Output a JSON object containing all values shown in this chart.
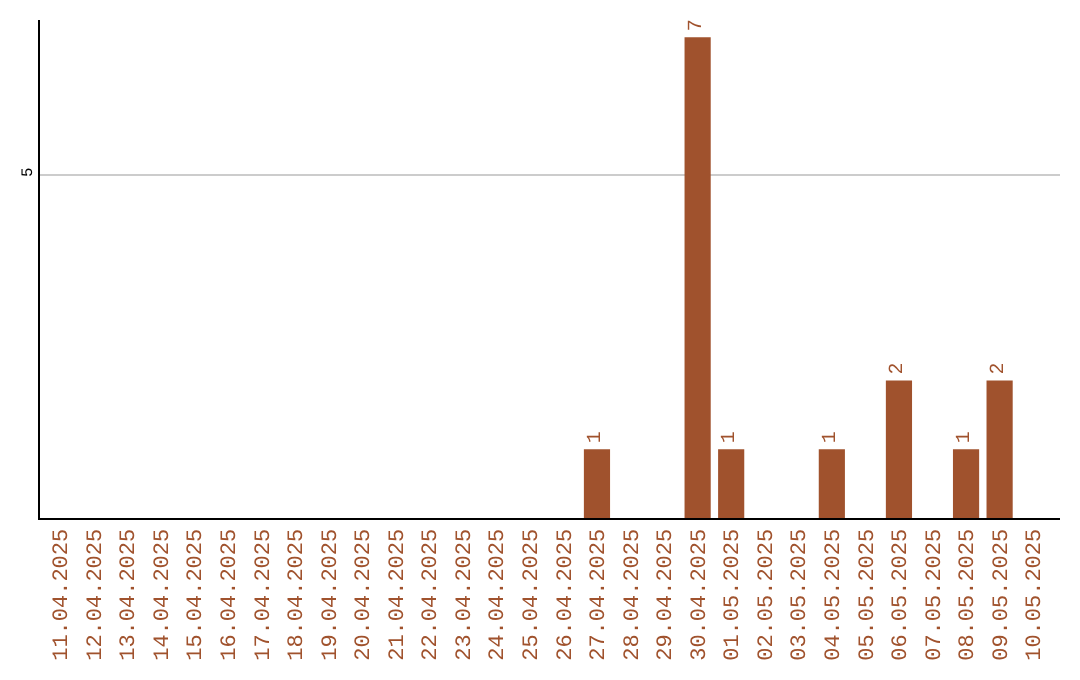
{
  "chart_data": {
    "type": "bar",
    "categories": [
      "11.04.2025",
      "12.04.2025",
      "13.04.2025",
      "14.04.2025",
      "15.04.2025",
      "16.04.2025",
      "17.04.2025",
      "18.04.2025",
      "19.04.2025",
      "20.04.2025",
      "21.04.2025",
      "22.04.2025",
      "23.04.2025",
      "24.04.2025",
      "25.04.2025",
      "26.04.2025",
      "27.04.2025",
      "28.04.2025",
      "29.04.2025",
      "30.04.2025",
      "01.05.2025",
      "02.05.2025",
      "03.05.2025",
      "04.05.2025",
      "05.05.2025",
      "06.05.2025",
      "07.05.2025",
      "08.05.2025",
      "09.05.2025",
      "10.05.2025"
    ],
    "values": [
      null,
      null,
      null,
      null,
      null,
      null,
      null,
      null,
      null,
      null,
      null,
      null,
      null,
      null,
      null,
      null,
      1,
      null,
      null,
      7,
      1,
      null,
      null,
      1,
      null,
      2,
      null,
      1,
      2,
      null
    ],
    "data_labels": true,
    "color": "#a0522d",
    "ylim": [
      0,
      7.25
    ],
    "yticks": [
      5
    ],
    "grid": "y",
    "legend": false
  }
}
